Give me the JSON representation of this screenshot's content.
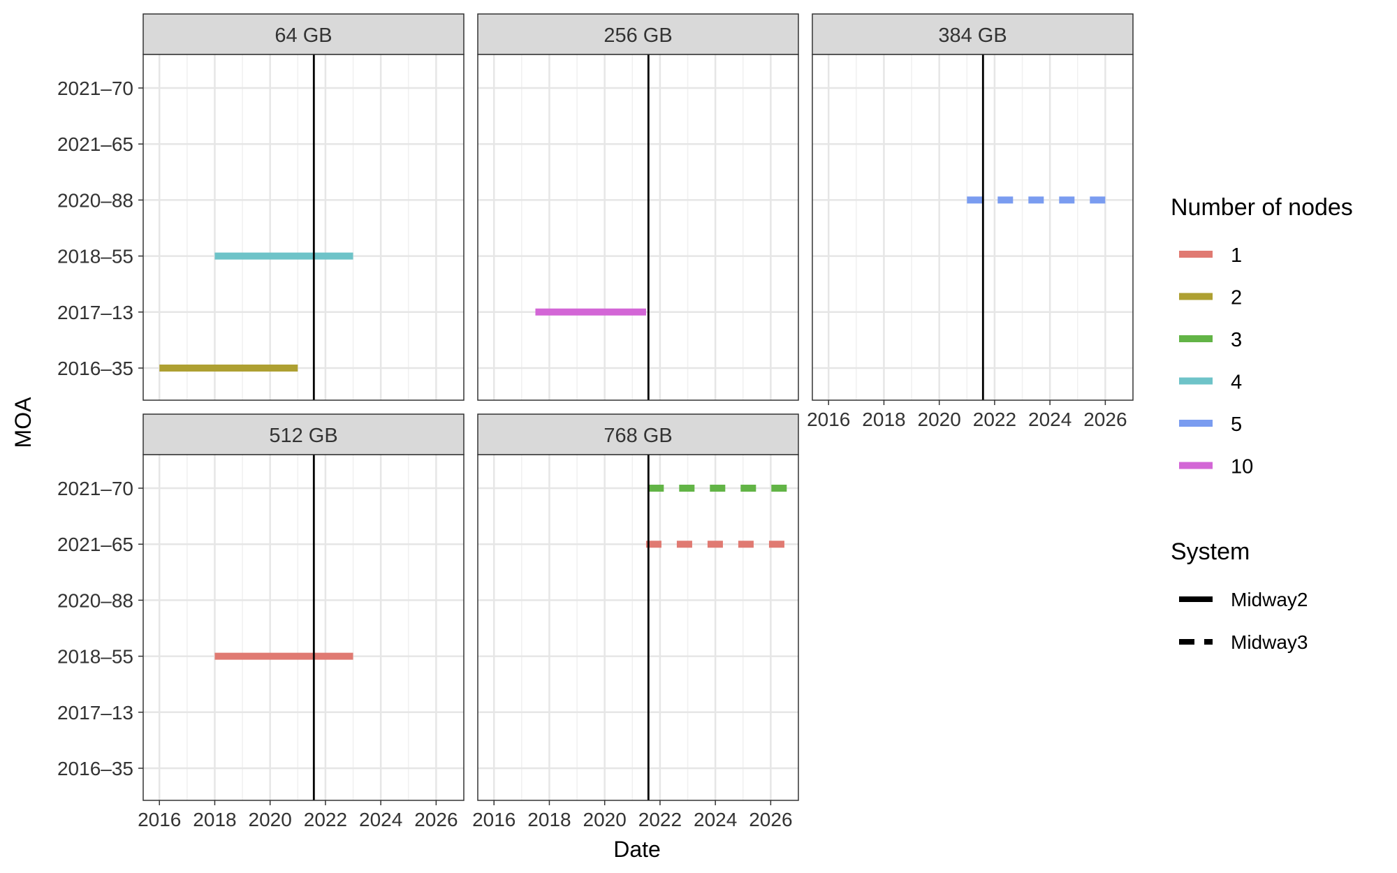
{
  "chart_data": {
    "type": "line",
    "xlabel": "Date",
    "ylabel": "MOA",
    "x_ticks": [
      "2016",
      "2018",
      "2020",
      "2022",
      "2024",
      "2026"
    ],
    "xlim": [
      "2015-06-01",
      "2027-01-01"
    ],
    "y_categories": [
      "2016–35",
      "2017–13",
      "2018–55",
      "2020–88",
      "2021–65",
      "2021–70"
    ],
    "grid": true,
    "reference_line": {
      "x": "2021-08-01",
      "color": "#000000"
    },
    "facets": [
      {
        "label": "64 GB",
        "segments": [
          {
            "moa": "2018–55",
            "nodes": "4",
            "system": "Midway2",
            "start": "2018-01-01",
            "end": "2023-01-01"
          },
          {
            "moa": "2016–35",
            "nodes": "2",
            "system": "Midway2",
            "start": "2016-01-01",
            "end": "2021-01-01"
          }
        ]
      },
      {
        "label": "256 GB",
        "segments": [
          {
            "moa": "2017–13",
            "nodes": "10",
            "system": "Midway2",
            "start": "2017-07-01",
            "end": "2021-07-01"
          }
        ]
      },
      {
        "label": "384 GB",
        "segments": [
          {
            "moa": "2020–88",
            "nodes": "5",
            "system": "Midway3",
            "start": "2021-01-01",
            "end": "2026-01-01"
          }
        ]
      },
      {
        "label": "512 GB",
        "segments": [
          {
            "moa": "2018–55",
            "nodes": "1",
            "system": "Midway2",
            "start": "2018-01-01",
            "end": "2023-01-01"
          }
        ]
      },
      {
        "label": "768 GB",
        "segments": [
          {
            "moa": "2021–70",
            "nodes": "3",
            "system": "Midway3",
            "start": "2021-08-01",
            "end": "2026-08-01"
          },
          {
            "moa": "2021–65",
            "nodes": "1",
            "system": "Midway3",
            "start": "2021-07-01",
            "end": "2026-07-01"
          }
        ]
      }
    ],
    "legend": {
      "placement": "right",
      "color_title": "Number of nodes",
      "color_items": [
        {
          "label": "1",
          "color": "#e07a72"
        },
        {
          "label": "2",
          "color": "#aea032"
        },
        {
          "label": "3",
          "color": "#62b446"
        },
        {
          "label": "4",
          "color": "#6ec3c8"
        },
        {
          "label": "5",
          "color": "#7a9cf0"
        },
        {
          "label": "10",
          "color": "#d366d6"
        }
      ],
      "linetype_title": "System",
      "linetype_items": [
        {
          "label": "Midway2",
          "style": "solid"
        },
        {
          "label": "Midway3",
          "style": "dashed"
        }
      ]
    }
  }
}
